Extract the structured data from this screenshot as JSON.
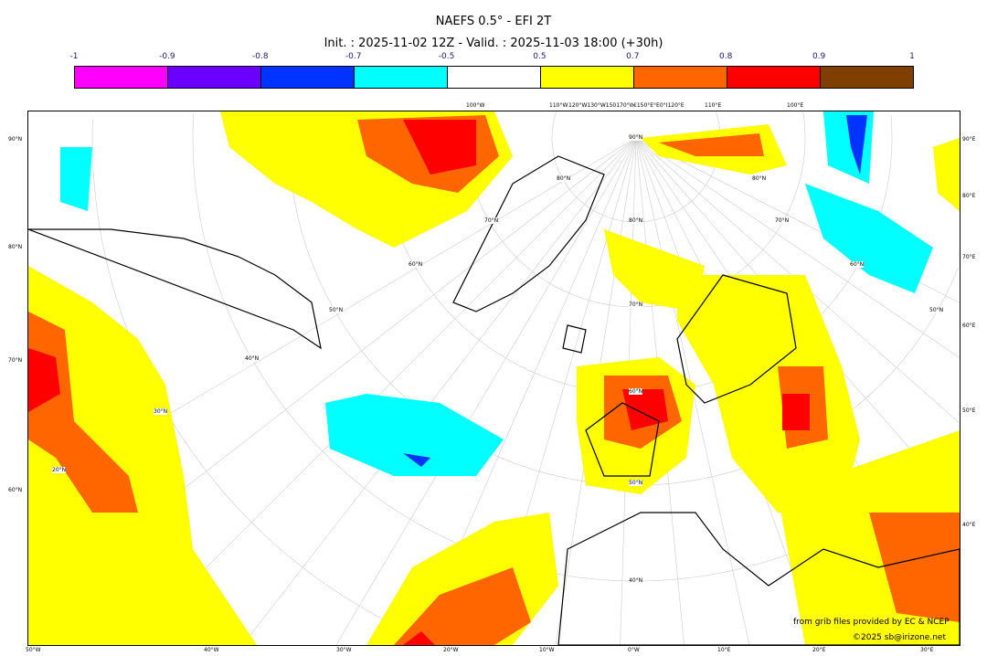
{
  "header": {
    "title": "NAEFS 0.5° - EFI 2T",
    "subtitle": "Init. : 2025-11-02 12Z - Valid. : 2025-11-03 18:00 (+30h)"
  },
  "colorbar": {
    "ticks": [
      "-1",
      "-0.9",
      "-0.8",
      "-0.7",
      "-0.5",
      "0.5",
      "0.7",
      "0.8",
      "0.9",
      "1"
    ],
    "colors": [
      "#ff00ff",
      "#6a00ff",
      "#0033ff",
      "#00ffff",
      "#ffffff",
      "#ffff00",
      "#ff6600",
      "#ff0000",
      "#7f3f00"
    ]
  },
  "labels": {
    "left": [
      "90°N",
      "80°N",
      "70°N",
      "60°N"
    ],
    "right": [
      "90°E",
      "80°E",
      "70°E",
      "60°E",
      "50°E",
      "40°E"
    ],
    "bottom": [
      "50°W",
      "40°W",
      "30°W",
      "20°W",
      "10°W",
      "0°W",
      "10°E",
      "20°E",
      "30°E"
    ],
    "top": [
      "100°W",
      "110°W",
      "120°W130°W150170°W",
      "€150°E°E0°I120°E",
      "110°E",
      "100°E"
    ],
    "inner": [
      "90°N",
      "80°N",
      "70°N",
      "60°N",
      "50°N",
      "40°N",
      "50°N",
      "40°N",
      "30°N",
      "20°N",
      "60°N",
      "70°N",
      "80°N",
      "70°N",
      "80°N",
      "60°N",
      "50°N"
    ]
  },
  "credits": {
    "source": "from grib files provided by EC & NCEP",
    "copyright": "©2025 sb@irizone.net"
  }
}
